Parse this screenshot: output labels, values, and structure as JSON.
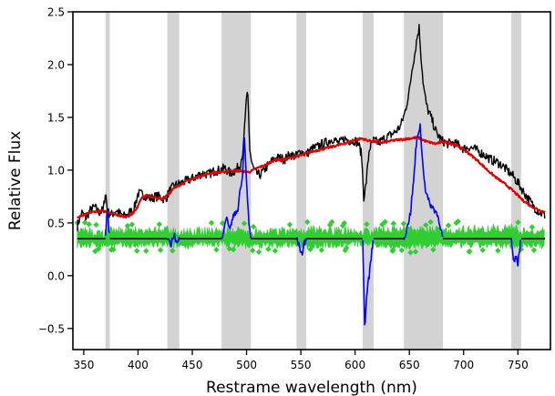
{
  "chart_data": {
    "type": "line",
    "xlabel": "Restrame wavelength (nm)",
    "ylabel": "Relative Flux",
    "xlim": [
      340,
      780
    ],
    "ylim": [
      -0.7,
      2.5
    ],
    "xticks": [
      350,
      400,
      450,
      500,
      550,
      600,
      650,
      700,
      750
    ],
    "yticks": [
      -0.5,
      0.0,
      0.5,
      1.0,
      1.5,
      2.0,
      2.5
    ],
    "xtick_labels": [
      "350",
      "400",
      "450",
      "500",
      "550",
      "600",
      "650",
      "700",
      "750"
    ],
    "ytick_labels": [
      "−0.5",
      "0.0",
      "0.5",
      "1.0",
      "1.5",
      "2.0",
      "2.5"
    ],
    "grid": false,
    "legend": "none",
    "shaded_regions": [
      [
        370,
        374
      ],
      [
        427,
        438
      ],
      [
        477,
        504
      ],
      [
        546,
        555
      ],
      [
        607,
        617
      ],
      [
        645,
        681
      ],
      [
        744,
        753
      ]
    ],
    "baseline": 0.35,
    "series": [
      {
        "color": "#000000",
        "style": "line",
        "x": [
          344,
          348,
          352,
          356,
          360,
          364,
          368,
          370,
          372,
          376,
          380,
          384,
          388,
          392,
          396,
          400,
          404,
          408,
          412,
          416,
          420,
          425,
          430,
          435,
          440,
          445,
          450,
          455,
          460,
          465,
          470,
          475,
          480,
          485,
          490,
          494,
          497,
          499,
          501,
          503,
          505,
          508,
          512,
          516,
          520,
          525,
          530,
          535,
          540,
          545,
          550,
          555,
          560,
          565,
          570,
          575,
          580,
          585,
          590,
          595,
          600,
          603,
          606,
          608,
          610,
          613,
          617,
          622,
          627,
          632,
          637,
          642,
          646,
          650,
          653,
          655,
          657,
          659,
          661,
          663,
          666,
          670,
          675,
          680,
          685,
          690,
          695,
          700,
          705,
          710,
          715,
          720,
          725,
          730,
          735,
          740,
          745,
          750,
          755,
          760,
          765,
          770,
          775
        ],
        "y": [
          0.47,
          0.6,
          0.55,
          0.62,
          0.65,
          0.6,
          0.62,
          0.8,
          0.6,
          0.58,
          0.62,
          0.58,
          0.56,
          0.6,
          0.62,
          0.78,
          0.77,
          0.75,
          0.73,
          0.75,
          0.75,
          0.72,
          0.82,
          0.86,
          0.88,
          0.9,
          0.92,
          0.95,
          0.97,
          0.96,
          0.99,
          1.0,
          1.02,
          0.97,
          1.0,
          1.05,
          1.2,
          1.55,
          1.75,
          1.2,
          1.05,
          0.98,
          0.95,
          1.0,
          1.05,
          1.1,
          1.12,
          1.1,
          1.15,
          1.13,
          1.18,
          1.15,
          1.2,
          1.22,
          1.25,
          1.27,
          1.3,
          1.25,
          1.3,
          1.28,
          1.28,
          1.25,
          1.15,
          0.75,
          0.85,
          1.2,
          1.28,
          1.26,
          1.3,
          1.33,
          1.36,
          1.42,
          1.55,
          1.75,
          2.0,
          2.1,
          2.25,
          2.35,
          2.05,
          1.8,
          1.6,
          1.5,
          1.35,
          1.28,
          1.25,
          1.26,
          1.24,
          1.2,
          1.22,
          1.2,
          1.17,
          1.14,
          1.1,
          1.08,
          1.05,
          1.0,
          0.95,
          0.88,
          0.8,
          0.72,
          0.65,
          0.6,
          0.57
        ]
      },
      {
        "color": "#e00000",
        "style": "line",
        "x": [
          344,
          350,
          356,
          362,
          368,
          374,
          380,
          386,
          392,
          398,
          403,
          408,
          415,
          422,
          430,
          438,
          446,
          454,
          462,
          470,
          478,
          486,
          494,
          502,
          510,
          518,
          526,
          534,
          542,
          550,
          558,
          566,
          574,
          582,
          590,
          598,
          606,
          612,
          618,
          626,
          634,
          642,
          650,
          658,
          666,
          674,
          682,
          690,
          698,
          706,
          714,
          722,
          730,
          738,
          746,
          754,
          762,
          770,
          775
        ],
        "y": [
          0.55,
          0.57,
          0.6,
          0.61,
          0.61,
          0.6,
          0.58,
          0.56,
          0.57,
          0.62,
          0.74,
          0.76,
          0.74,
          0.72,
          0.8,
          0.86,
          0.9,
          0.93,
          0.96,
          0.98,
          0.98,
          1.0,
          0.99,
          0.98,
          1.02,
          1.05,
          1.1,
          1.1,
          1.12,
          1.14,
          1.17,
          1.19,
          1.21,
          1.23,
          1.25,
          1.28,
          1.3,
          1.28,
          1.27,
          1.26,
          1.28,
          1.29,
          1.3,
          1.31,
          1.27,
          1.25,
          1.27,
          1.25,
          1.21,
          1.15,
          1.08,
          1.0,
          0.93,
          0.87,
          0.8,
          0.72,
          0.66,
          0.62,
          0.6
        ]
      },
      {
        "color": "#32cd32",
        "style": "band",
        "x": [
          344,
          370,
          374,
          427,
          438,
          477,
          504,
          546,
          555,
          607,
          617,
          645,
          681,
          744,
          753,
          775
        ],
        "y_low": [
          0.25,
          0.26,
          0.25,
          0.26,
          0.25,
          0.27,
          0.25,
          0.26,
          0.25,
          0.27,
          0.26,
          0.24,
          0.26,
          0.25,
          0.26,
          0.25
        ],
        "y_high": [
          0.47,
          0.45,
          0.47,
          0.48,
          0.46,
          0.47,
          0.46,
          0.47,
          0.48,
          0.46,
          0.47,
          0.48,
          0.47,
          0.5,
          0.46,
          0.46
        ]
      },
      {
        "color": "#000000",
        "style": "segments",
        "segments": [
          [
            344,
            370
          ],
          [
            374,
            427
          ],
          [
            438,
            477
          ],
          [
            504,
            546
          ],
          [
            555,
            607
          ],
          [
            617,
            645
          ],
          [
            681,
            744
          ],
          [
            753,
            775
          ]
        ],
        "y": 0.35
      },
      {
        "color": "#0000ff",
        "style": "line",
        "segments": [
          {
            "x": [
              370,
              371,
              372,
              373,
              374
            ],
            "y": [
              0.35,
              0.55,
              0.62,
              0.45,
              0.35
            ]
          },
          {
            "x": [
              427,
              430,
              433,
              436,
              438
            ],
            "y": [
              0.35,
              0.28,
              0.4,
              0.3,
              0.35
            ]
          },
          {
            "x": [
              477,
              481,
              485,
              489,
              492,
              494,
              496,
              498,
              500,
              502,
              504
            ],
            "y": [
              0.35,
              0.55,
              0.45,
              0.6,
              0.62,
              0.8,
              0.9,
              1.3,
              0.9,
              0.5,
              0.35
            ]
          },
          {
            "x": [
              546,
              548,
              551,
              553,
              555
            ],
            "y": [
              0.35,
              0.3,
              0.2,
              0.3,
              0.35
            ]
          },
          {
            "x": [
              607,
              608,
              609,
              610,
              611,
              613,
              615,
              617
            ],
            "y": [
              0.35,
              -0.1,
              -0.55,
              -0.3,
              -0.15,
              0.0,
              0.2,
              0.35
            ]
          },
          {
            "x": [
              645,
              648,
              651,
              654,
              656,
              658,
              660,
              662,
              665,
              668,
              671,
              675,
              678,
              681
            ],
            "y": [
              0.35,
              0.45,
              0.6,
              0.9,
              1.2,
              1.35,
              1.42,
              1.1,
              0.8,
              0.7,
              0.65,
              0.6,
              0.5,
              0.35
            ]
          },
          {
            "x": [
              744,
              746,
              748,
              750,
              753
            ],
            "y": [
              0.35,
              0.1,
              0.18,
              0.12,
              0.35
            ]
          }
        ]
      }
    ]
  }
}
